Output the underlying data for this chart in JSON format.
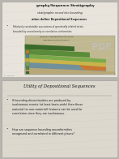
{
  "bg_color": "#b8b4ae",
  "slide1": {
    "bg": "#e8e4dc",
    "title": "graphy/Sequence Stratigraphy",
    "line1": "stratigraphic record into bounding",
    "line2_pre": "ation define ",
    "line2_bold": "Depositional Sequences",
    "line3": "Relatively correlatable successions of genetically related strata",
    "line4": "bounded by unconformity or correlative conformities",
    "diag_title1": "SPRING TRAIL DROWNED BASIN CLIFF CANYON",
    "diag_title2": "THIRD CREEK ESTUARY SIG LOCO, CA"
  },
  "slide2": {
    "bg": "#dcd8ce",
    "title": "Utility of Depositional Sequences",
    "bullet1_plain": "If bounding discontinuities are produced by\nisochronous events (at least basin-wide) then these\nmaterial (or non-material) features can be used for\ncorrelation since they are ",
    "bullet1_italic": "isochronous.",
    "bullet2": "How are sequence bounding unconformities\nrecognized and correlated in different places?"
  },
  "colors": {
    "dark_green": "#3a6b2a",
    "mid_green": "#5a8c3a",
    "light_green": "#7aaa4a",
    "yellow_tan": "#c8b44a",
    "orange": "#c87832",
    "brown": "#a05020",
    "blue": "#5080a0",
    "light_blue": "#7090b8",
    "tan_bg": "#b8a878",
    "diag_bg": "#c0b890"
  }
}
